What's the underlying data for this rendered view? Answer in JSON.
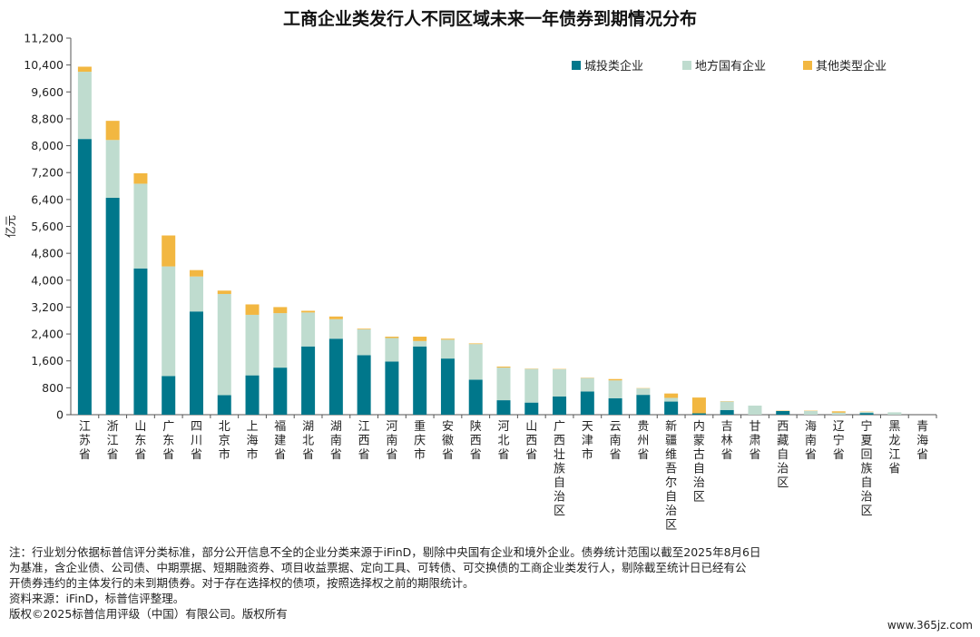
{
  "chart_data": {
    "type": "bar",
    "stacked": true,
    "title": "工商企业类发行人不同区域未来一年债券到期情况分布",
    "ylabel": "亿元",
    "ylim": [
      0,
      11200
    ],
    "yticks": [
      0,
      800,
      1600,
      2400,
      3200,
      4000,
      4800,
      5600,
      6400,
      7200,
      8000,
      8800,
      9600,
      10400,
      11200
    ],
    "yticklabels": [
      "0",
      "800",
      "1,600",
      "2,400",
      "3,200",
      "4,000",
      "4,800",
      "5,600",
      "6,400",
      "7,200",
      "8,000",
      "8,800",
      "9,600",
      "10,400",
      "11,200"
    ],
    "legend_position": "top-right",
    "grid": false,
    "categories": [
      "江苏省",
      "浙江省",
      "山东省",
      "广东省",
      "四川省",
      "北京市",
      "上海市",
      "福建省",
      "湖北省",
      "湖南省",
      "江西省",
      "河南省",
      "重庆市",
      "安徽省",
      "陕西省",
      "河北省",
      "山西省",
      "广西壮族自治区",
      "天津市",
      "云南省",
      "贵州省",
      "新疆维吾尔自治区",
      "内蒙古自治区",
      "吉林省",
      "甘肃省",
      "西藏自治区",
      "海南省",
      "辽宁省",
      "宁夏回族自治区",
      "黑龙江省",
      "青海省"
    ],
    "series": [
      {
        "name": "城投类企业",
        "color": "#00778b",
        "values": [
          8200,
          6450,
          4350,
          1150,
          3070,
          580,
          1170,
          1400,
          2030,
          2260,
          1770,
          1580,
          2030,
          1670,
          1040,
          430,
          360,
          540,
          690,
          490,
          590,
          390,
          40,
          140,
          0,
          110,
          0,
          0,
          50,
          0,
          0
        ]
      },
      {
        "name": "地方国有企业",
        "color": "#bfdccf",
        "values": [
          2000,
          1720,
          2520,
          3260,
          1040,
          3010,
          1800,
          1620,
          1010,
          580,
          770,
          700,
          160,
          560,
          1060,
          970,
          1000,
          810,
          400,
          530,
          190,
          110,
          0,
          250,
          270,
          0,
          110,
          60,
          30,
          70,
          0
        ]
      },
      {
        "name": "其他类型企业",
        "color": "#f2b741",
        "values": [
          150,
          570,
          310,
          920,
          190,
          100,
          310,
          180,
          50,
          80,
          20,
          40,
          130,
          30,
          20,
          30,
          10,
          10,
          10,
          40,
          10,
          130,
          470,
          10,
          0,
          10,
          10,
          40,
          10,
          0,
          0
        ]
      }
    ]
  },
  "notes": {
    "line1": "注：行业划分依据标普信评分类标准，部分公开信息不全的企业分类来源于iFinD，剔除中央国有企业和境外企业。债券统计范围以截至2025年8月6日",
    "line2": "为基准，含企业债、公司债、中期票据、短期融资券、项目收益票据、定向工具、可转债、可交换债的工商企业类发行人，剔除截至统计日已经有公",
    "line3": "开债券违约的主体发行的未到期债券。对于存在选择权的债项，按照选择权之前的期限统计。",
    "source": "资料来源：iFinD，标普信评整理。",
    "copyright": "版权©2025标普信用评级（中国）有限公司。版权所有"
  },
  "watermark": "www.365jz.com"
}
